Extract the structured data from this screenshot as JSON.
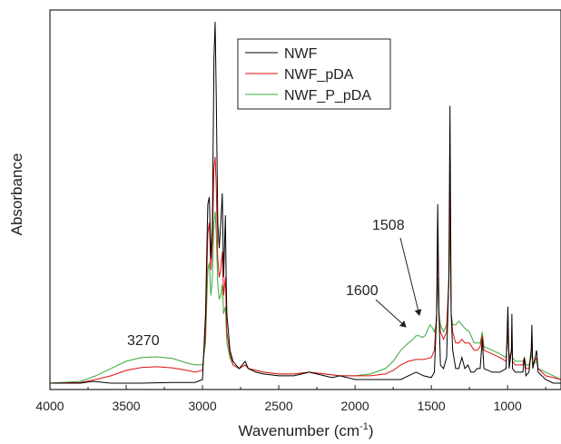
{
  "chart_data": {
    "type": "line",
    "xlabel_main": "Wavenumber (cm",
    "xlabel_sup": "-1",
    "xlabel_end": ")",
    "ylabel": "Absorbance",
    "xlim": [
      4000,
      650
    ],
    "x_reversed": true,
    "y_ticks_shown": false,
    "x_ticks": [
      4000,
      3500,
      3000,
      2500,
      2000,
      1500,
      1000
    ],
    "legend_position": "top-center",
    "series": [
      {
        "name": "NWF",
        "color": "#000000",
        "points": [
          [
            4000,
            0.01
          ],
          [
            3800,
            0.01
          ],
          [
            3720,
            0.015
          ],
          [
            3600,
            0.01
          ],
          [
            3400,
            0.01
          ],
          [
            3200,
            0.012
          ],
          [
            3050,
            0.012
          ],
          [
            3000,
            0.02
          ],
          [
            2980,
            0.2
          ],
          [
            2965,
            0.5
          ],
          [
            2955,
            0.52
          ],
          [
            2945,
            0.35
          ],
          [
            2935,
            0.45
          ],
          [
            2925,
            0.9
          ],
          [
            2917,
            1.0
          ],
          [
            2910,
            0.8
          ],
          [
            2900,
            0.45
          ],
          [
            2890,
            0.38
          ],
          [
            2880,
            0.45
          ],
          [
            2870,
            0.53
          ],
          [
            2862,
            0.3
          ],
          [
            2850,
            0.47
          ],
          [
            2845,
            0.3
          ],
          [
            2840,
            0.2
          ],
          [
            2820,
            0.1
          ],
          [
            2800,
            0.07
          ],
          [
            2760,
            0.05
          ],
          [
            2720,
            0.07
          ],
          [
            2700,
            0.05
          ],
          [
            2650,
            0.04
          ],
          [
            2600,
            0.035
          ],
          [
            2500,
            0.03
          ],
          [
            2400,
            0.03
          ],
          [
            2350,
            0.035
          ],
          [
            2300,
            0.04
          ],
          [
            2200,
            0.03
          ],
          [
            2150,
            0.025
          ],
          [
            2100,
            0.03
          ],
          [
            2000,
            0.02
          ],
          [
            1900,
            0.02
          ],
          [
            1800,
            0.02
          ],
          [
            1700,
            0.02
          ],
          [
            1650,
            0.03
          ],
          [
            1600,
            0.04
          ],
          [
            1550,
            0.03
          ],
          [
            1500,
            0.025
          ],
          [
            1480,
            0.04
          ],
          [
            1465,
            0.2
          ],
          [
            1458,
            0.5
          ],
          [
            1450,
            0.2
          ],
          [
            1440,
            0.06
          ],
          [
            1420,
            0.05
          ],
          [
            1400,
            0.08
          ],
          [
            1385,
            0.3
          ],
          [
            1378,
            0.77
          ],
          [
            1370,
            0.2
          ],
          [
            1360,
            0.1
          ],
          [
            1340,
            0.05
          ],
          [
            1320,
            0.05
          ],
          [
            1300,
            0.08
          ],
          [
            1280,
            0.05
          ],
          [
            1260,
            0.06
          ],
          [
            1240,
            0.04
          ],
          [
            1220,
            0.04
          ],
          [
            1200,
            0.05
          ],
          [
            1180,
            0.05
          ],
          [
            1166,
            0.13
          ],
          [
            1155,
            0.05
          ],
          [
            1100,
            0.04
          ],
          [
            1050,
            0.04
          ],
          [
            1010,
            0.05
          ],
          [
            998,
            0.22
          ],
          [
            990,
            0.05
          ],
          [
            975,
            0.1
          ],
          [
            972,
            0.2
          ],
          [
            968,
            0.05
          ],
          [
            950,
            0.04
          ],
          [
            900,
            0.04
          ],
          [
            890,
            0.08
          ],
          [
            880,
            0.03
          ],
          [
            860,
            0.04
          ],
          [
            845,
            0.1
          ],
          [
            841,
            0.17
          ],
          [
            835,
            0.05
          ],
          [
            810,
            0.1
          ],
          [
            800,
            0.04
          ],
          [
            750,
            0.02
          ],
          [
            700,
            0.01
          ],
          [
            650,
            0.01
          ]
        ]
      },
      {
        "name": "NWF_pDA",
        "color": "#e01010",
        "points": [
          [
            4000,
            0.01
          ],
          [
            3800,
            0.012
          ],
          [
            3700,
            0.02
          ],
          [
            3600,
            0.03
          ],
          [
            3500,
            0.045
          ],
          [
            3400,
            0.053
          ],
          [
            3300,
            0.055
          ],
          [
            3200,
            0.052
          ],
          [
            3100,
            0.045
          ],
          [
            3050,
            0.04
          ],
          [
            3000,
            0.045
          ],
          [
            2980,
            0.15
          ],
          [
            2965,
            0.42
          ],
          [
            2955,
            0.45
          ],
          [
            2945,
            0.32
          ],
          [
            2935,
            0.4
          ],
          [
            2925,
            0.6
          ],
          [
            2917,
            0.63
          ],
          [
            2910,
            0.55
          ],
          [
            2900,
            0.35
          ],
          [
            2890,
            0.3
          ],
          [
            2880,
            0.32
          ],
          [
            2870,
            0.37
          ],
          [
            2862,
            0.25
          ],
          [
            2850,
            0.3
          ],
          [
            2845,
            0.22
          ],
          [
            2840,
            0.15
          ],
          [
            2820,
            0.09
          ],
          [
            2800,
            0.06
          ],
          [
            2760,
            0.05
          ],
          [
            2720,
            0.06
          ],
          [
            2700,
            0.05
          ],
          [
            2650,
            0.045
          ],
          [
            2600,
            0.04
          ],
          [
            2500,
            0.035
          ],
          [
            2400,
            0.035
          ],
          [
            2300,
            0.04
          ],
          [
            2200,
            0.035
          ],
          [
            2100,
            0.03
          ],
          [
            2000,
            0.03
          ],
          [
            1900,
            0.03
          ],
          [
            1800,
            0.035
          ],
          [
            1750,
            0.045
          ],
          [
            1700,
            0.06
          ],
          [
            1650,
            0.07
          ],
          [
            1600,
            0.075
          ],
          [
            1550,
            0.075
          ],
          [
            1500,
            0.08
          ],
          [
            1480,
            0.1
          ],
          [
            1465,
            0.2
          ],
          [
            1458,
            0.4
          ],
          [
            1450,
            0.2
          ],
          [
            1440,
            0.15
          ],
          [
            1420,
            0.13
          ],
          [
            1400,
            0.15
          ],
          [
            1385,
            0.3
          ],
          [
            1378,
            0.58
          ],
          [
            1370,
            0.2
          ],
          [
            1360,
            0.15
          ],
          [
            1340,
            0.12
          ],
          [
            1320,
            0.12
          ],
          [
            1300,
            0.13
          ],
          [
            1280,
            0.12
          ],
          [
            1250,
            0.12
          ],
          [
            1220,
            0.1
          ],
          [
            1200,
            0.1
          ],
          [
            1180,
            0.11
          ],
          [
            1166,
            0.14
          ],
          [
            1155,
            0.1
          ],
          [
            1100,
            0.09
          ],
          [
            1050,
            0.08
          ],
          [
            1010,
            0.07
          ],
          [
            998,
            0.16
          ],
          [
            990,
            0.07
          ],
          [
            975,
            0.1
          ],
          [
            972,
            0.16
          ],
          [
            968,
            0.07
          ],
          [
            950,
            0.06
          ],
          [
            900,
            0.06
          ],
          [
            890,
            0.08
          ],
          [
            880,
            0.05
          ],
          [
            860,
            0.05
          ],
          [
            845,
            0.1
          ],
          [
            841,
            0.13
          ],
          [
            835,
            0.06
          ],
          [
            810,
            0.08
          ],
          [
            800,
            0.05
          ],
          [
            750,
            0.03
          ],
          [
            700,
            0.025
          ],
          [
            650,
            0.02
          ]
        ]
      },
      {
        "name": "NWF_P_pDA",
        "color": "#3aa83a",
        "points": [
          [
            4000,
            0.01
          ],
          [
            3800,
            0.015
          ],
          [
            3700,
            0.03
          ],
          [
            3600,
            0.05
          ],
          [
            3500,
            0.07
          ],
          [
            3400,
            0.08
          ],
          [
            3300,
            0.082
          ],
          [
            3200,
            0.078
          ],
          [
            3100,
            0.065
          ],
          [
            3050,
            0.06
          ],
          [
            3000,
            0.06
          ],
          [
            2980,
            0.12
          ],
          [
            2965,
            0.32
          ],
          [
            2955,
            0.34
          ],
          [
            2945,
            0.25
          ],
          [
            2935,
            0.3
          ],
          [
            2925,
            0.45
          ],
          [
            2917,
            0.48
          ],
          [
            2910,
            0.42
          ],
          [
            2900,
            0.28
          ],
          [
            2890,
            0.24
          ],
          [
            2880,
            0.25
          ],
          [
            2870,
            0.28
          ],
          [
            2862,
            0.2
          ],
          [
            2850,
            0.22
          ],
          [
            2845,
            0.17
          ],
          [
            2840,
            0.12
          ],
          [
            2820,
            0.08
          ],
          [
            2800,
            0.06
          ],
          [
            2760,
            0.05
          ],
          [
            2720,
            0.06
          ],
          [
            2700,
            0.05
          ],
          [
            2650,
            0.045
          ],
          [
            2600,
            0.04
          ],
          [
            2500,
            0.035
          ],
          [
            2400,
            0.035
          ],
          [
            2300,
            0.04
          ],
          [
            2200,
            0.035
          ],
          [
            2100,
            0.03
          ],
          [
            2000,
            0.03
          ],
          [
            1900,
            0.035
          ],
          [
            1800,
            0.05
          ],
          [
            1750,
            0.07
          ],
          [
            1700,
            0.1
          ],
          [
            1650,
            0.12
          ],
          [
            1620,
            0.13
          ],
          [
            1600,
            0.14
          ],
          [
            1580,
            0.14
          ],
          [
            1560,
            0.135
          ],
          [
            1540,
            0.14
          ],
          [
            1520,
            0.16
          ],
          [
            1508,
            0.17
          ],
          [
            1490,
            0.16
          ],
          [
            1480,
            0.15
          ],
          [
            1465,
            0.18
          ],
          [
            1458,
            0.3
          ],
          [
            1450,
            0.2
          ],
          [
            1440,
            0.17
          ],
          [
            1420,
            0.15
          ],
          [
            1400,
            0.17
          ],
          [
            1385,
            0.28
          ],
          [
            1378,
            0.47
          ],
          [
            1370,
            0.2
          ],
          [
            1360,
            0.17
          ],
          [
            1340,
            0.17
          ],
          [
            1320,
            0.18
          ],
          [
            1300,
            0.17
          ],
          [
            1280,
            0.16
          ],
          [
            1250,
            0.15
          ],
          [
            1220,
            0.12
          ],
          [
            1200,
            0.12
          ],
          [
            1180,
            0.12
          ],
          [
            1166,
            0.15
          ],
          [
            1155,
            0.11
          ],
          [
            1100,
            0.1
          ],
          [
            1050,
            0.09
          ],
          [
            1010,
            0.08
          ],
          [
            998,
            0.14
          ],
          [
            990,
            0.08
          ],
          [
            975,
            0.1
          ],
          [
            972,
            0.13
          ],
          [
            968,
            0.08
          ],
          [
            950,
            0.07
          ],
          [
            900,
            0.07
          ],
          [
            890,
            0.08
          ],
          [
            880,
            0.06
          ],
          [
            860,
            0.06
          ],
          [
            845,
            0.08
          ],
          [
            841,
            0.1
          ],
          [
            835,
            0.06
          ],
          [
            810,
            0.07
          ],
          [
            800,
            0.05
          ],
          [
            750,
            0.04
          ],
          [
            700,
            0.03
          ],
          [
            650,
            0.02
          ]
        ]
      }
    ],
    "annotations": [
      {
        "text": "3270",
        "x": 3270
      },
      {
        "text": "1600",
        "x": 1600,
        "arrow": true
      },
      {
        "text": "1508",
        "x": 1508,
        "arrow": true
      }
    ]
  }
}
